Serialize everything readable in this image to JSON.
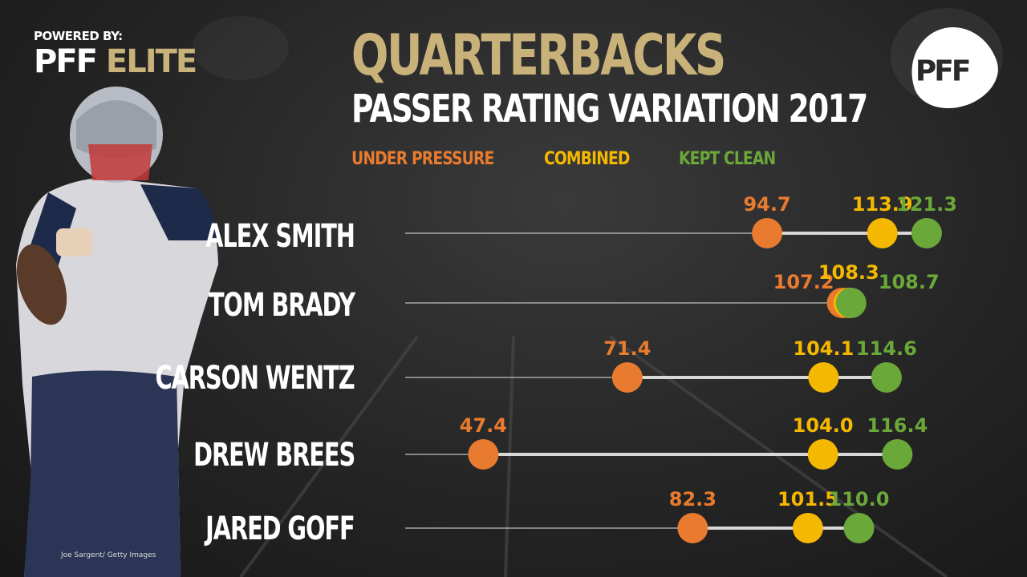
{
  "branding": {
    "powered_by": "POWERED BY:",
    "pff": "PFF",
    "elite": "ELITE",
    "logo_text": "PFF",
    "photo_credit": "Joe Sargent/ Getty Images"
  },
  "colors": {
    "gold": "#c8b27a",
    "under_pressure": "#e87b2f",
    "combined": "#f5b800",
    "kept_clean": "#6aa83a"
  },
  "chart_data": {
    "type": "scatter",
    "title": "QUARTERBACKS",
    "subtitle": "PASSER RATING VARIATION 2017",
    "series": [
      {
        "name": "UNDER PRESSURE",
        "values": [
          94.7,
          107.2,
          71.4,
          47.4,
          82.3
        ]
      },
      {
        "name": "COMBINED",
        "values": [
          113.9,
          108.3,
          104.1,
          104.0,
          101.5
        ]
      },
      {
        "name": "KEPT CLEAN",
        "values": [
          121.3,
          108.7,
          114.6,
          116.4,
          110.0
        ]
      }
    ],
    "categories": [
      "ALEX SMITH",
      "TOM BRADY",
      "CARSON WENTZ",
      "DREW BREES",
      "JARED GOFF"
    ],
    "labels": {
      "under_pressure": [
        "94.7",
        "107.2",
        "71.4",
        "47.4",
        "82.3"
      ],
      "combined": [
        "113.9",
        "108.3",
        "104.1",
        "104.0",
        "101.5"
      ],
      "kept_clean": [
        "121.3",
        "108.7",
        "114.6",
        "116.4",
        "110.0"
      ]
    },
    "xlim": [
      42,
      121.3
    ],
    "xlabel": "",
    "ylabel": ""
  }
}
